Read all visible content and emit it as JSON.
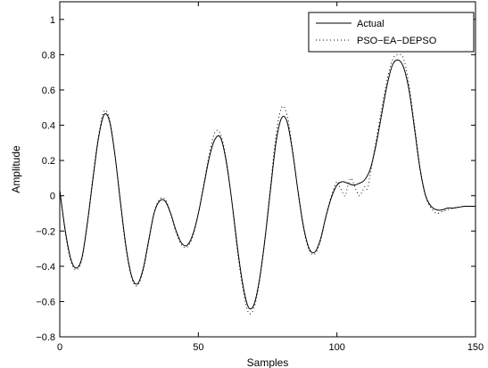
{
  "chart_data": {
    "type": "line",
    "xlabel": "Samples",
    "ylabel": "Amplitude",
    "xlim": [
      0,
      150
    ],
    "ylim": [
      -0.8,
      1.1
    ],
    "xticks": [
      0,
      50,
      100,
      150
    ],
    "yticks": [
      -0.8,
      -0.6,
      -0.4,
      -0.2,
      0,
      0.2,
      0.4,
      0.6,
      0.8,
      1
    ],
    "ytick_labels": [
      "−0.8",
      "−0.6",
      "−0.4",
      "−0.2",
      "0",
      "0.2",
      "0.4",
      "0.6",
      "0.8",
      "1"
    ],
    "grid": false,
    "legend_position": "top-right",
    "series": [
      {
        "name": "Actual",
        "style": "solid",
        "color": "#000000",
        "x": [
          0,
          2,
          4,
          6,
          8,
          10,
          12,
          14,
          16,
          18,
          20,
          22,
          24,
          26,
          28,
          30,
          32,
          34,
          36,
          38,
          40,
          42,
          44,
          46,
          48,
          50,
          52,
          54,
          56,
          58,
          60,
          62,
          64,
          66,
          68,
          70,
          72,
          74,
          76,
          78,
          80,
          82,
          84,
          86,
          88,
          90,
          92,
          94,
          96,
          98,
          100,
          102,
          104,
          106,
          108,
          110,
          112,
          114,
          116,
          118,
          120,
          122,
          124,
          126,
          128,
          130,
          132,
          134,
          136,
          138,
          140,
          142,
          144,
          146,
          148,
          150
        ],
        "y": [
          0.03,
          -0.2,
          -0.36,
          -0.41,
          -0.35,
          -0.15,
          0.1,
          0.33,
          0.46,
          0.42,
          0.22,
          -0.05,
          -0.3,
          -0.46,
          -0.5,
          -0.42,
          -0.26,
          -0.1,
          -0.03,
          -0.03,
          -0.1,
          -0.2,
          -0.27,
          -0.28,
          -0.22,
          -0.1,
          0.06,
          0.22,
          0.32,
          0.33,
          0.2,
          -0.02,
          -0.28,
          -0.5,
          -0.63,
          -0.62,
          -0.48,
          -0.25,
          0.03,
          0.3,
          0.44,
          0.42,
          0.25,
          0.02,
          -0.18,
          -0.3,
          -0.32,
          -0.25,
          -0.12,
          -0.01,
          0.06,
          0.08,
          0.07,
          0.06,
          0.07,
          0.09,
          0.15,
          0.28,
          0.45,
          0.62,
          0.74,
          0.77,
          0.73,
          0.6,
          0.38,
          0.15,
          0.0,
          -0.06,
          -0.08,
          -0.08,
          -0.07,
          -0.07,
          -0.065,
          -0.06,
          -0.06,
          -0.06
        ]
      },
      {
        "name": "PSO−EA−DEPSO",
        "style": "dotted",
        "color": "#000000",
        "x": [
          0,
          2,
          4,
          6,
          8,
          10,
          12,
          14,
          16,
          18,
          20,
          22,
          24,
          26,
          28,
          30,
          32,
          34,
          36,
          38,
          40,
          42,
          44,
          46,
          48,
          50,
          52,
          54,
          56,
          58,
          60,
          62,
          64,
          66,
          68,
          70,
          72,
          74,
          76,
          78,
          80,
          82,
          84,
          86,
          88,
          90,
          92,
          94,
          96,
          98,
          100,
          101,
          102,
          103,
          104,
          105,
          106,
          107,
          108,
          109,
          110,
          111,
          112,
          114,
          116,
          118,
          120,
          122,
          124,
          126,
          128,
          130,
          132,
          134,
          136,
          138,
          140,
          142,
          144,
          146,
          148,
          150
        ],
        "y": [
          0.04,
          -0.21,
          -0.37,
          -0.42,
          -0.36,
          -0.15,
          0.11,
          0.34,
          0.48,
          0.43,
          0.22,
          -0.06,
          -0.31,
          -0.47,
          -0.51,
          -0.43,
          -0.27,
          -0.1,
          -0.02,
          -0.02,
          -0.1,
          -0.21,
          -0.28,
          -0.29,
          -0.23,
          -0.1,
          0.07,
          0.24,
          0.36,
          0.35,
          0.21,
          -0.02,
          -0.3,
          -0.52,
          -0.66,
          -0.64,
          -0.49,
          -0.25,
          0.05,
          0.34,
          0.5,
          0.46,
          0.26,
          0.02,
          -0.19,
          -0.31,
          -0.33,
          -0.26,
          -0.12,
          0.0,
          0.08,
          0.05,
          0.02,
          0.0,
          0.06,
          0.1,
          0.07,
          0.03,
          0.0,
          0.02,
          0.05,
          0.04,
          0.12,
          0.3,
          0.48,
          0.65,
          0.77,
          0.8,
          0.78,
          0.63,
          0.4,
          0.16,
          0.0,
          -0.07,
          -0.1,
          -0.09,
          -0.08,
          -0.07,
          -0.065,
          -0.06,
          -0.06,
          -0.06
        ]
      }
    ]
  }
}
